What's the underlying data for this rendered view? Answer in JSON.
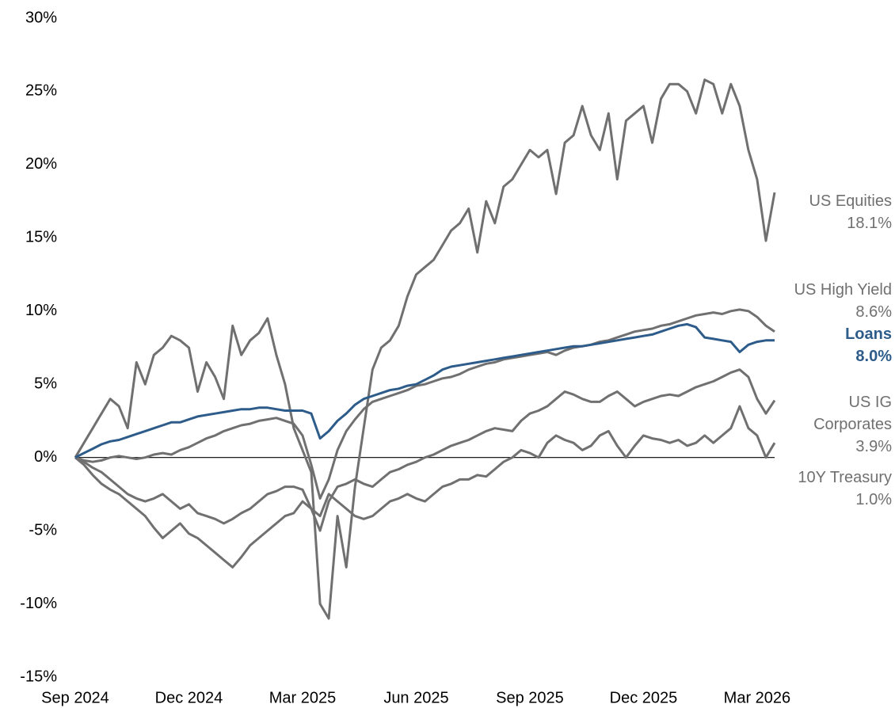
{
  "chart_data": {
    "type": "line",
    "categories": [
      "Sep 2024",
      null,
      null,
      null,
      null,
      null,
      null,
      null,
      null,
      null,
      null,
      null,
      null,
      "Dec 2024",
      null,
      null,
      null,
      null,
      null,
      null,
      null,
      null,
      null,
      null,
      null,
      null,
      "Mar 2025",
      null,
      null,
      null,
      null,
      null,
      null,
      null,
      null,
      null,
      null,
      null,
      null,
      "Jun 2025",
      null,
      null,
      null,
      null,
      null,
      null,
      null,
      null,
      null,
      null,
      null,
      null,
      "Sep 2025",
      null,
      null,
      null,
      null,
      null,
      null,
      null,
      null,
      null,
      null,
      null,
      null,
      "Dec 2025",
      null,
      null,
      null,
      null,
      null,
      null,
      null,
      null,
      null,
      null,
      null,
      null,
      "Mar 2026",
      null,
      null
    ],
    "ylim": [
      -15,
      30
    ],
    "yticks": [
      {
        "value": -15,
        "label": "-15%"
      },
      {
        "value": -10,
        "label": "-10%"
      },
      {
        "value": -5,
        "label": "-5%"
      },
      {
        "value": 0,
        "label": "0%"
      },
      {
        "value": 5,
        "label": "5%"
      },
      {
        "value": 10,
        "label": "10%"
      },
      {
        "value": 15,
        "label": "15%"
      },
      {
        "value": 20,
        "label": "20%"
      },
      {
        "value": 25,
        "label": "25%"
      },
      {
        "value": 30,
        "label": "30%"
      }
    ],
    "grid": false,
    "highlight": "Loans",
    "series": [
      {
        "name": "US Equities",
        "color": "#707070",
        "end_label": "18.1%",
        "values": [
          0,
          1.0,
          2.0,
          3.0,
          4.0,
          3.5,
          2.0,
          6.5,
          5.0,
          7.0,
          7.5,
          8.3,
          8.0,
          7.5,
          4.5,
          6.5,
          5.5,
          4.0,
          9.0,
          7.0,
          8.0,
          8.5,
          9.5,
          7.0,
          5.0,
          2.0,
          0.5,
          -1.0,
          -10.0,
          -11.0,
          -4.0,
          -7.5,
          -2.0,
          2.0,
          6.0,
          7.5,
          8.0,
          9.0,
          11.0,
          12.5,
          13.0,
          13.5,
          14.5,
          15.5,
          16.0,
          17.0,
          14.0,
          17.5,
          16.0,
          18.5,
          19.0,
          20.0,
          21.0,
          20.5,
          21.0,
          18.0,
          21.5,
          22.0,
          24.0,
          22.0,
          21.0,
          23.5,
          19.0,
          23.0,
          23.5,
          24.0,
          21.5,
          24.5,
          25.5,
          25.5,
          25.0,
          23.5,
          25.8,
          25.5,
          23.5,
          25.5,
          24.0,
          21.0,
          19.0,
          14.8,
          18.1
        ]
      },
      {
        "name": "US High Yield",
        "color": "#707070",
        "end_label": "8.6%",
        "values": [
          0,
          -0.2,
          -0.3,
          -0.2,
          0,
          0.1,
          0,
          -0.1,
          0,
          0.2,
          0.3,
          0.2,
          0.5,
          0.7,
          1.0,
          1.3,
          1.5,
          1.8,
          2.0,
          2.2,
          2.3,
          2.5,
          2.6,
          2.7,
          2.5,
          2.3,
          1.5,
          -0.5,
          -2.8,
          -1.5,
          0.5,
          1.8,
          2.6,
          3.3,
          3.8,
          4.0,
          4.2,
          4.4,
          4.6,
          4.9,
          5.0,
          5.2,
          5.4,
          5.5,
          5.7,
          6.0,
          6.2,
          6.4,
          6.5,
          6.7,
          6.8,
          6.9,
          7.0,
          7.1,
          7.2,
          7.0,
          7.3,
          7.5,
          7.6,
          7.7,
          7.9,
          8.0,
          8.2,
          8.4,
          8.6,
          8.7,
          8.8,
          9.0,
          9.1,
          9.3,
          9.5,
          9.7,
          9.8,
          9.9,
          9.8,
          10.0,
          10.1,
          10.0,
          9.6,
          9.0,
          8.6
        ]
      },
      {
        "name": "Loans",
        "color": "#2e5c8a",
        "end_label": "8.0%",
        "values": [
          0,
          0.3,
          0.6,
          0.9,
          1.1,
          1.2,
          1.4,
          1.6,
          1.8,
          2.0,
          2.2,
          2.4,
          2.4,
          2.6,
          2.8,
          2.9,
          3.0,
          3.1,
          3.2,
          3.3,
          3.3,
          3.4,
          3.4,
          3.3,
          3.2,
          3.2,
          3.2,
          3.0,
          1.3,
          1.8,
          2.5,
          3.0,
          3.6,
          4.0,
          4.2,
          4.4,
          4.6,
          4.7,
          4.9,
          5.0,
          5.3,
          5.6,
          6.0,
          6.2,
          6.3,
          6.4,
          6.5,
          6.6,
          6.7,
          6.8,
          6.9,
          7.0,
          7.1,
          7.2,
          7.3,
          7.4,
          7.5,
          7.6,
          7.6,
          7.7,
          7.8,
          7.9,
          8.0,
          8.1,
          8.2,
          8.3,
          8.4,
          8.6,
          8.8,
          9.0,
          9.1,
          8.9,
          8.2,
          8.1,
          8.0,
          7.9,
          7.2,
          7.7,
          7.9,
          8.0,
          8.0
        ]
      },
      {
        "name": "US IG Corporates",
        "color": "#707070",
        "end_label": "3.9%",
        "values": [
          0,
          -0.3,
          -0.7,
          -1.0,
          -1.5,
          -2.0,
          -2.5,
          -2.8,
          -3.0,
          -2.8,
          -2.5,
          -3.0,
          -3.5,
          -3.2,
          -3.8,
          -4.0,
          -4.2,
          -4.5,
          -4.2,
          -3.8,
          -3.5,
          -3.0,
          -2.5,
          -2.3,
          -2.0,
          -2.0,
          -2.2,
          -3.5,
          -5.0,
          -3.0,
          -2.0,
          -1.8,
          -1.5,
          -1.8,
          -2.0,
          -1.5,
          -1.0,
          -0.8,
          -0.5,
          -0.3,
          0,
          0.2,
          0.5,
          0.8,
          1.0,
          1.2,
          1.5,
          1.8,
          2.0,
          1.9,
          1.8,
          2.5,
          3.0,
          3.2,
          3.5,
          4.0,
          4.5,
          4.3,
          4.0,
          3.8,
          3.8,
          4.2,
          4.5,
          4.0,
          3.5,
          3.8,
          4.0,
          4.2,
          4.3,
          4.2,
          4.5,
          4.8,
          5.0,
          5.2,
          5.5,
          5.8,
          6.0,
          5.5,
          4.0,
          3.0,
          3.9
        ]
      },
      {
        "name": "10Y Treasury",
        "color": "#707070",
        "end_label": "1.0%",
        "values": [
          0,
          -0.5,
          -1.2,
          -1.8,
          -2.2,
          -2.5,
          -3.0,
          -3.5,
          -4.0,
          -4.8,
          -5.5,
          -5.0,
          -4.5,
          -5.2,
          -5.5,
          -6.0,
          -6.5,
          -7.0,
          -7.5,
          -6.8,
          -6.0,
          -5.5,
          -5.0,
          -4.5,
          -4.0,
          -3.8,
          -3.0,
          -3.5,
          -4.0,
          -2.5,
          -3.0,
          -3.5,
          -4.0,
          -4.2,
          -4.0,
          -3.5,
          -3.0,
          -2.8,
          -2.5,
          -2.8,
          -3.0,
          -2.5,
          -2.0,
          -1.8,
          -1.5,
          -1.5,
          -1.2,
          -1.3,
          -0.8,
          -0.3,
          0,
          0.5,
          0.3,
          0,
          1.0,
          1.5,
          1.2,
          1.0,
          0.5,
          0.8,
          1.5,
          1.8,
          0.8,
          0,
          0.8,
          1.5,
          1.3,
          1.2,
          1.0,
          1.2,
          0.8,
          1.0,
          1.5,
          1.0,
          1.5,
          2.0,
          3.5,
          2.0,
          1.5,
          0.0,
          1.0
        ]
      }
    ]
  }
}
